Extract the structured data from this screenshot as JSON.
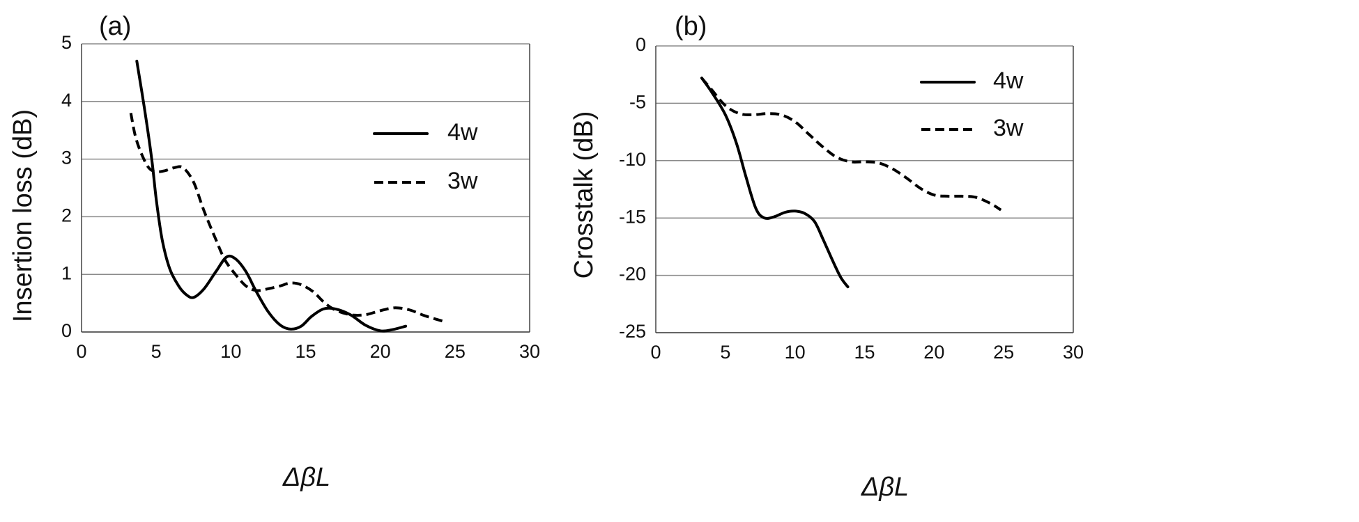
{
  "chart_data": [
    {
      "type": "line",
      "panel_label": "(a)",
      "xlabel": "ΔβL",
      "ylabel": "Insertion loss (dB)",
      "xlim": [
        0,
        30
      ],
      "ylim": [
        0,
        5
      ],
      "x_ticks": [
        "0",
        "5",
        "10",
        "15",
        "20",
        "25",
        "30"
      ],
      "y_ticks": [
        "0",
        "1",
        "2",
        "3",
        "4",
        "5"
      ],
      "grid": "horizontal",
      "legend_position": "upper-right",
      "series": [
        {
          "name": "4w",
          "style": "solid",
          "x": [
            3.7,
            4.2,
            4.7,
            5.0,
            5.4,
            5.9,
            6.5,
            7.0,
            7.5,
            8.2,
            9.0,
            9.7,
            10.3,
            11.0,
            11.7,
            12.5,
            13.3,
            14.0,
            14.7,
            15.4,
            16.2,
            17.0,
            18.0,
            19.0,
            20.0,
            20.8,
            21.7
          ],
          "y": [
            4.7,
            3.9,
            3.0,
            2.3,
            1.6,
            1.1,
            0.8,
            0.65,
            0.6,
            0.75,
            1.05,
            1.3,
            1.27,
            1.05,
            0.7,
            0.35,
            0.12,
            0.05,
            0.1,
            0.27,
            0.4,
            0.4,
            0.3,
            0.12,
            0.02,
            0.04,
            0.1
          ]
        },
        {
          "name": "3w",
          "style": "dashed",
          "x": [
            3.3,
            3.6,
            4.0,
            4.5,
            5.0,
            5.6,
            6.2,
            6.8,
            7.5,
            8.2,
            9.0,
            9.6,
            10.3,
            11.0,
            11.7,
            12.5,
            13.3,
            14.0,
            14.7,
            15.5,
            16.3,
            17.0,
            18.0,
            19.0,
            20.0,
            21.0,
            22.0,
            23.0,
            24.3
          ],
          "y": [
            3.8,
            3.4,
            3.1,
            2.85,
            2.78,
            2.8,
            2.85,
            2.85,
            2.6,
            2.1,
            1.6,
            1.25,
            1.0,
            0.8,
            0.72,
            0.75,
            0.8,
            0.85,
            0.82,
            0.7,
            0.5,
            0.38,
            0.3,
            0.3,
            0.37,
            0.42,
            0.38,
            0.28,
            0.18
          ]
        }
      ]
    },
    {
      "type": "line",
      "panel_label": "(b)",
      "xlabel": "ΔβL",
      "ylabel": "Crosstalk (dB)",
      "xlim": [
        0,
        30
      ],
      "ylim": [
        -25,
        0
      ],
      "x_ticks": [
        "0",
        "5",
        "10",
        "15",
        "20",
        "25",
        "30"
      ],
      "y_ticks": [
        "0",
        "-5",
        "-10",
        "-15",
        "-20",
        "-25"
      ],
      "grid": "horizontal",
      "legend_position": "upper-right",
      "series": [
        {
          "name": "4w",
          "style": "solid",
          "x": [
            3.3,
            4.0,
            5.0,
            5.8,
            6.5,
            7.2,
            7.8,
            8.5,
            9.3,
            10.0,
            10.7,
            11.4,
            12.0,
            12.7,
            13.3,
            13.8
          ],
          "y": [
            -2.8,
            -4.0,
            -6.0,
            -8.5,
            -11.5,
            -14.2,
            -15.0,
            -14.9,
            -14.5,
            -14.4,
            -14.6,
            -15.3,
            -16.8,
            -18.7,
            -20.2,
            -21.0
          ]
        },
        {
          "name": "3w",
          "style": "dashed",
          "x": [
            3.3,
            4.0,
            5.0,
            6.0,
            7.0,
            8.0,
            9.0,
            10.0,
            11.0,
            12.0,
            13.0,
            14.0,
            15.0,
            16.0,
            17.0,
            18.0,
            19.0,
            20.0,
            21.0,
            22.0,
            23.0,
            24.0,
            24.8
          ],
          "y": [
            -2.8,
            -3.8,
            -5.2,
            -5.9,
            -6.0,
            -5.9,
            -6.0,
            -6.6,
            -7.7,
            -8.8,
            -9.7,
            -10.1,
            -10.1,
            -10.2,
            -10.7,
            -11.5,
            -12.4,
            -13.0,
            -13.1,
            -13.1,
            -13.2,
            -13.7,
            -14.3
          ]
        }
      ]
    }
  ]
}
